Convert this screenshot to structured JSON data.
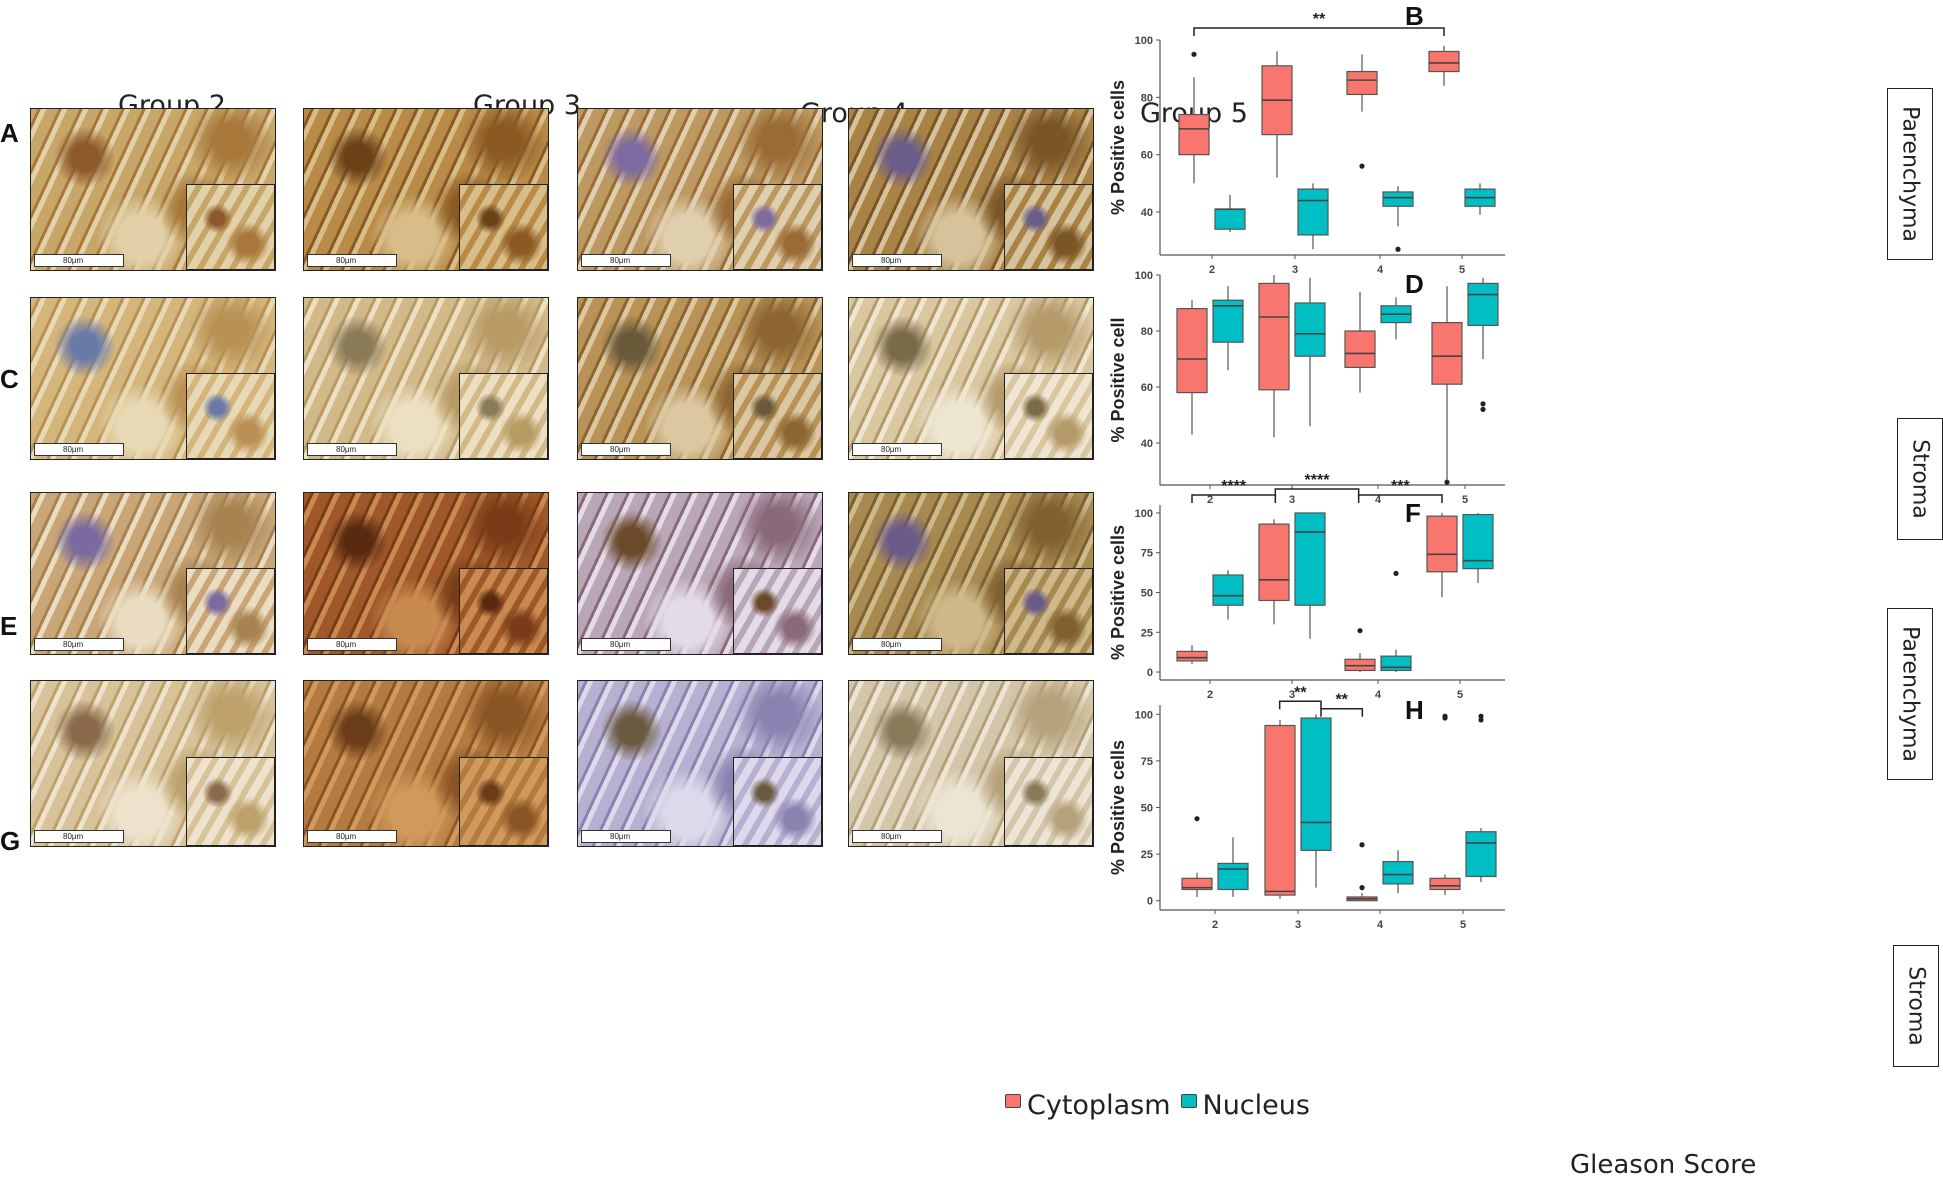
{
  "figure": {
    "groups": [
      "Group 2",
      "Group 3",
      "Group 4",
      "Group 5"
    ],
    "image_rows": [
      {
        "letter": "A",
        "tissue": "Parenchyma"
      },
      {
        "letter": "C",
        "tissue": "Stroma"
      },
      {
        "letter": "E",
        "tissue": "Parenchyma"
      },
      {
        "letter": "G",
        "tissue": "Stroma"
      }
    ],
    "scale_bar_label": "80μm",
    "legend": {
      "items": [
        {
          "label": "Cytoplasm",
          "color": "#F8766D"
        },
        {
          "label": "Nucleus",
          "color": "#00BFC4"
        }
      ]
    },
    "shared_xlabel": "Gleason Score",
    "tissue_labels": [
      "Parenchyma",
      "Stroma",
      "Parenchyma",
      "Stroma"
    ],
    "colors": {
      "cytoplasm": "#F8766D",
      "nucleus": "#00BFC4"
    }
  },
  "chart_data": [
    {
      "panel": "B",
      "type": "box",
      "ylabel": "% Positive cells",
      "xlabel": "",
      "categories": [
        "2",
        "3",
        "4",
        "5"
      ],
      "ylim": [
        25,
        100
      ],
      "yticks": [
        40,
        60,
        80,
        100
      ],
      "series": [
        {
          "name": "Cytoplasm",
          "boxes": [
            {
              "min": 50,
              "q1": 60,
              "median": 69,
              "q3": 74,
              "max": 87,
              "outliers": [
                95
              ]
            },
            {
              "min": 52,
              "q1": 67,
              "median": 79,
              "q3": 91,
              "max": 96,
              "outliers": []
            },
            {
              "min": 75,
              "q1": 81,
              "median": 86,
              "q3": 89,
              "max": 95,
              "outliers": [
                56
              ]
            },
            {
              "min": 84,
              "q1": 89,
              "median": 92,
              "q3": 96,
              "max": 98,
              "outliers": []
            }
          ]
        },
        {
          "name": "Nucleus",
          "boxes": [
            {
              "min": 33,
              "q1": 34,
              "median": 41,
              "q3": 41,
              "max": 46,
              "outliers": []
            },
            {
              "min": 27,
              "q1": 32,
              "median": 44,
              "q3": 48,
              "max": 50,
              "outliers": []
            },
            {
              "min": 35,
              "q1": 42,
              "median": 45,
              "q3": 47,
              "max": 49,
              "outliers": [
                27
              ]
            },
            {
              "min": 39,
              "q1": 42,
              "median": 45,
              "q3": 48,
              "max": 50,
              "outliers": []
            }
          ]
        }
      ],
      "brackets": [
        {
          "from": 0,
          "to": 3,
          "label": "**"
        }
      ]
    },
    {
      "panel": "D",
      "type": "box",
      "ylabel": "% Positive cell",
      "xlabel": "",
      "categories": [
        "2",
        "3",
        "4",
        "5"
      ],
      "ylim": [
        25,
        100
      ],
      "yticks": [
        40,
        60,
        80,
        100
      ],
      "series": [
        {
          "name": "Cytoplasm",
          "boxes": [
            {
              "min": 43,
              "q1": 58,
              "median": 70,
              "q3": 88,
              "max": 91,
              "outliers": []
            },
            {
              "min": 42,
              "q1": 59,
              "median": 85,
              "q3": 97,
              "max": 100,
              "outliers": []
            },
            {
              "min": 58,
              "q1": 67,
              "median": 72,
              "q3": 80,
              "max": 94,
              "outliers": []
            },
            {
              "min": 26,
              "q1": 61,
              "median": 71,
              "q3": 83,
              "max": 96,
              "outliers": [
                26
              ]
            }
          ]
        },
        {
          "name": "Nucleus",
          "boxes": [
            {
              "min": 66,
              "q1": 76,
              "median": 89,
              "q3": 91,
              "max": 96,
              "outliers": []
            },
            {
              "min": 46,
              "q1": 71,
              "median": 79,
              "q3": 90,
              "max": 99,
              "outliers": []
            },
            {
              "min": 77,
              "q1": 83,
              "median": 86,
              "q3": 89,
              "max": 92,
              "outliers": []
            },
            {
              "min": 70,
              "q1": 82,
              "median": 93,
              "q3": 97,
              "max": 99,
              "outliers": [
                54,
                52
              ]
            }
          ]
        }
      ],
      "brackets": []
    },
    {
      "panel": "F",
      "type": "box",
      "ylabel": "% Positive cells",
      "xlabel": "",
      "categories": [
        "2",
        "3",
        "4",
        "5"
      ],
      "ylim": [
        -5,
        105
      ],
      "yticks": [
        0,
        25,
        50,
        75,
        100
      ],
      "series": [
        {
          "name": "Cytoplasm",
          "boxes": [
            {
              "min": 5,
              "q1": 7,
              "median": 9,
              "q3": 13,
              "max": 17,
              "outliers": []
            },
            {
              "min": 30,
              "q1": 45,
              "median": 58,
              "q3": 93,
              "max": 96,
              "outliers": []
            },
            {
              "min": 0,
              "q1": 1,
              "median": 4,
              "q3": 8,
              "max": 12,
              "outliers": [
                26
              ]
            },
            {
              "min": 47,
              "q1": 63,
              "median": 74,
              "q3": 98,
              "max": 100,
              "outliers": []
            }
          ]
        },
        {
          "name": "Nucleus",
          "boxes": [
            {
              "min": 33,
              "q1": 42,
              "median": 48,
              "q3": 61,
              "max": 64,
              "outliers": []
            },
            {
              "min": 21,
              "q1": 42,
              "median": 88,
              "q3": 100,
              "max": 100,
              "outliers": []
            },
            {
              "min": 0,
              "q1": 1,
              "median": 3,
              "q3": 10,
              "max": 14,
              "outliers": [
                62
              ]
            },
            {
              "min": 56,
              "q1": 65,
              "median": 70,
              "q3": 99,
              "max": 100,
              "outliers": []
            }
          ]
        }
      ],
      "brackets": [
        {
          "from": 0,
          "to": 1,
          "label": "****"
        },
        {
          "from": 1,
          "to": 2,
          "label": "****"
        },
        {
          "from": 2,
          "to": 3,
          "label": "***"
        }
      ]
    },
    {
      "panel": "H",
      "type": "box",
      "ylabel": "% Positive cells",
      "xlabel": "Gleason Score",
      "categories": [
        "2",
        "3",
        "4",
        "5"
      ],
      "ylim": [
        -5,
        105
      ],
      "yticks": [
        0,
        25,
        50,
        75,
        100
      ],
      "series": [
        {
          "name": "Cytoplasm",
          "boxes": [
            {
              "min": 2,
              "q1": 6,
              "median": 7,
              "q3": 12,
              "max": 15,
              "outliers": [
                44
              ]
            },
            {
              "min": 1,
              "q1": 3,
              "median": 5,
              "q3": 94,
              "max": 97,
              "outliers": []
            },
            {
              "min": 0,
              "q1": 0,
              "median": 1,
              "q3": 2,
              "max": 4,
              "outliers": [
                30,
                7
              ]
            },
            {
              "min": 3,
              "q1": 6,
              "median": 8,
              "q3": 12,
              "max": 14,
              "outliers": [
                99,
                98
              ]
            }
          ]
        },
        {
          "name": "Nucleus",
          "boxes": [
            {
              "min": 2,
              "q1": 6,
              "median": 17,
              "q3": 20,
              "max": 34,
              "outliers": []
            },
            {
              "min": 7,
              "q1": 27,
              "median": 42,
              "q3": 98,
              "max": 100,
              "outliers": []
            },
            {
              "min": 4,
              "q1": 9,
              "median": 14,
              "q3": 21,
              "max": 27,
              "outliers": []
            },
            {
              "min": 10,
              "q1": 13,
              "median": 31,
              "q3": 37,
              "max": 39,
              "outliers": [
                99,
                97
              ]
            }
          ]
        }
      ],
      "brackets": [
        {
          "from": 1.0,
          "to": 1.5,
          "label": "**",
          "y": 107
        },
        {
          "from": 1.5,
          "to": 2.0,
          "label": "**",
          "y": 103
        }
      ]
    }
  ]
}
